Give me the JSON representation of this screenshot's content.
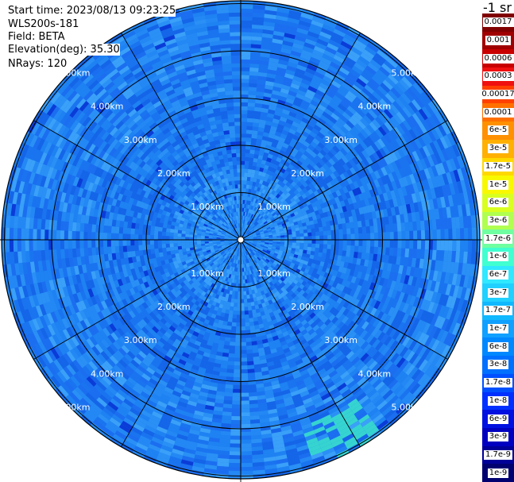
{
  "header": {
    "start_time": "Start time: 2023/08/13 09:23:25",
    "instrument": "WLS200s-181",
    "field": "Field: BETA",
    "elevation": "Elevation(deg): 35.30",
    "nrays": "NRays: 120"
  },
  "unit_label": "-1 sr",
  "range_labels": [
    "1.00km",
    "2.00km",
    "3.00km",
    "4.00km",
    "5.00km"
  ],
  "colorbar": {
    "labels": [
      "0.0017",
      "0.001",
      "0.0006",
      "0.0003",
      "0.00017",
      "0.0001",
      "6e-5",
      "3e-5",
      "1.7e-5",
      "1e-5",
      "6e-6",
      "3e-6",
      "1.7e-6",
      "1e-6",
      "6e-7",
      "3e-7",
      "1.7e-7",
      "1e-7",
      "6e-8",
      "3e-8",
      "1.7e-8",
      "1e-8",
      "6e-9",
      "3e-9",
      "1.7e-9",
      "1e-9"
    ],
    "colors": [
      "#800000",
      "#a00000",
      "#c80000",
      "#f01010",
      "#ff4000",
      "#ff7000",
      "#ff9000",
      "#ffb000",
      "#ffd800",
      "#f8f800",
      "#d8ff20",
      "#b0ff50",
      "#70ffa0",
      "#40ffd0",
      "#30e8ff",
      "#20d0ff",
      "#10b8ff",
      "#10a0ff",
      "#0088ff",
      "#0070ff",
      "#0050ff",
      "#0030ff",
      "#0010e0",
      "#0000c0",
      "#000098",
      "#000070"
    ]
  }
}
